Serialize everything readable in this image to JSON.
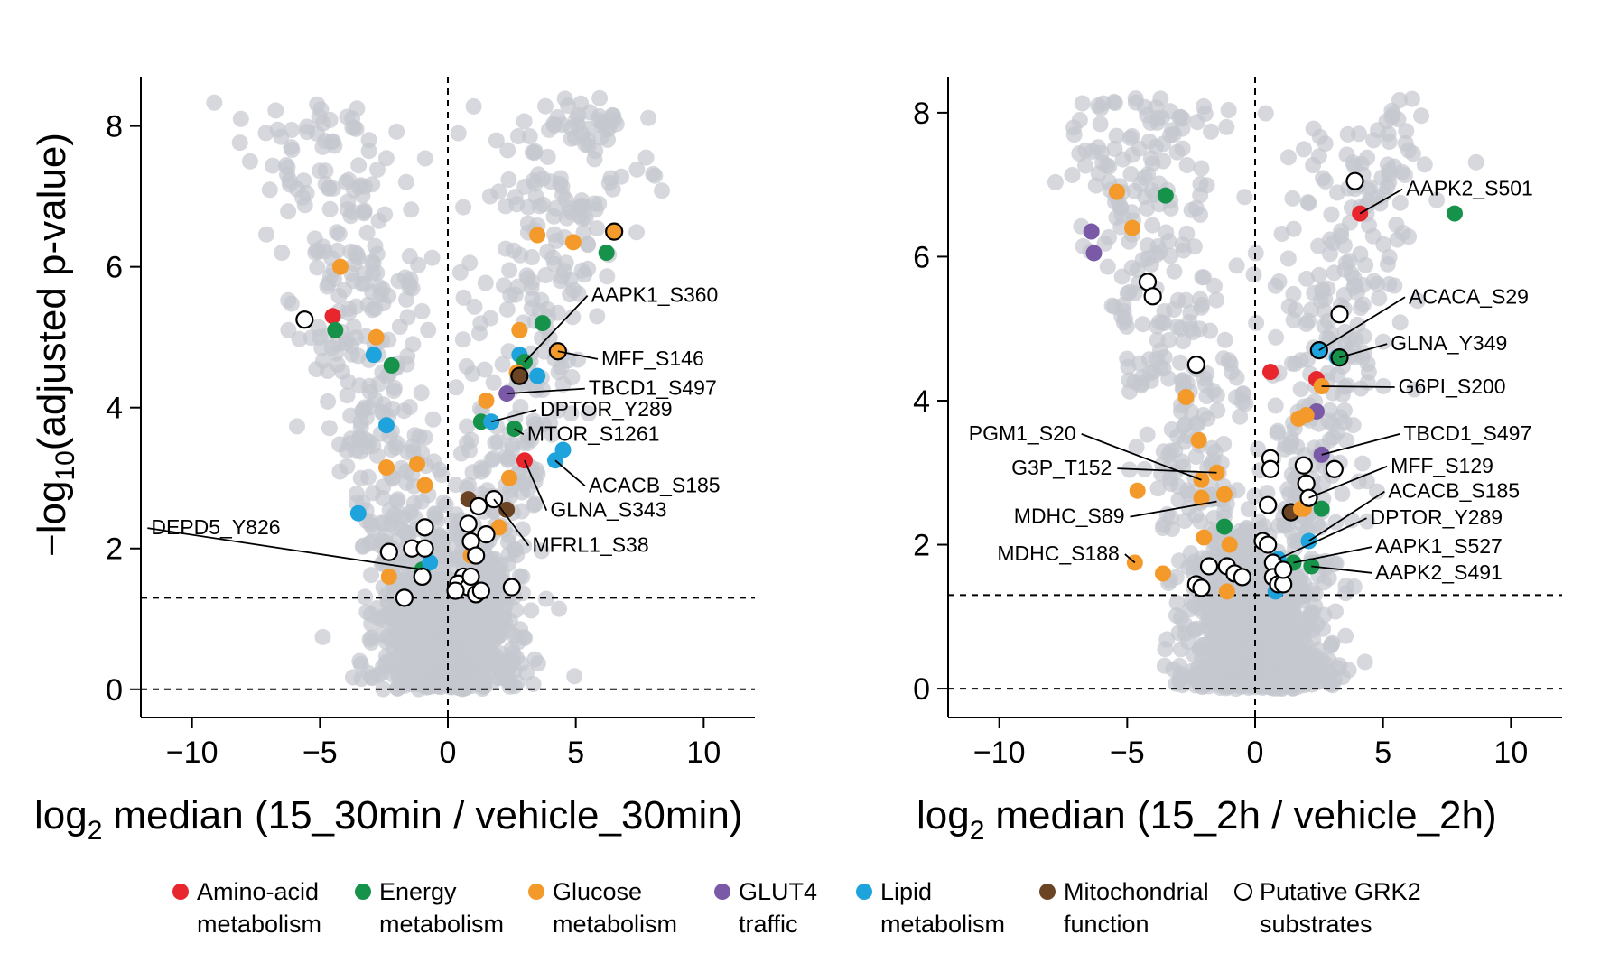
{
  "chart_data": [
    {
      "type": "scatter",
      "panel": "left",
      "xlabel": "log2 median (15_30min / vehicle_30min)",
      "xlabel_main": "median (15_30min / vehicle_30min)",
      "ylabel": "-log10(adjusted p-value)",
      "xlim": [
        -12,
        12
      ],
      "ylim": [
        -0.4,
        8.7
      ],
      "xticks": [
        -10,
        -5,
        0,
        5,
        10
      ],
      "xtick_labels": [
        "−10",
        "−5",
        "0",
        "5",
        "10"
      ],
      "yticks": [
        0,
        2,
        4,
        6,
        8
      ],
      "ytick_labels": [
        "0",
        "2",
        "4",
        "6",
        "8"
      ],
      "threshold_y": 1.3,
      "reference_y": 0,
      "reference_x": 0,
      "highlighted": [
        {
          "x": -4.5,
          "y": 5.3,
          "cat": "amino"
        },
        {
          "x": -4.4,
          "y": 5.1,
          "cat": "energy"
        },
        {
          "x": -4.2,
          "y": 6.0,
          "cat": "glucose"
        },
        {
          "x": -2.8,
          "y": 5.0,
          "cat": "glucose"
        },
        {
          "x": -2.9,
          "y": 4.75,
          "cat": "lipid"
        },
        {
          "x": -2.2,
          "y": 4.6,
          "cat": "energy"
        },
        {
          "x": -2.4,
          "y": 3.75,
          "cat": "lipid"
        },
        {
          "x": -2.4,
          "y": 3.15,
          "cat": "glucose"
        },
        {
          "x": -1.2,
          "y": 3.2,
          "cat": "glucose"
        },
        {
          "x": -0.9,
          "y": 2.9,
          "cat": "glucose"
        },
        {
          "x": -3.5,
          "y": 2.5,
          "cat": "lipid"
        },
        {
          "x": -2.3,
          "y": 1.6,
          "cat": "glucose"
        },
        {
          "x": -1.0,
          "y": 1.7,
          "cat": "energy"
        },
        {
          "x": -0.7,
          "y": 1.8,
          "cat": "lipid"
        },
        {
          "x": 3.5,
          "y": 6.45,
          "cat": "glucose"
        },
        {
          "x": 4.9,
          "y": 6.35,
          "cat": "glucose"
        },
        {
          "x": 6.2,
          "y": 6.2,
          "cat": "energy"
        },
        {
          "x": 2.8,
          "y": 5.1,
          "cat": "glucose"
        },
        {
          "x": 3.7,
          "y": 5.2,
          "cat": "energy"
        },
        {
          "x": 2.8,
          "y": 4.75,
          "cat": "lipid"
        },
        {
          "x": 3.0,
          "y": 4.65,
          "cat": "energy"
        },
        {
          "x": 2.7,
          "y": 4.5,
          "cat": "glucose"
        },
        {
          "x": 3.5,
          "y": 4.45,
          "cat": "lipid"
        },
        {
          "x": 1.5,
          "y": 4.1,
          "cat": "glucose"
        },
        {
          "x": 2.3,
          "y": 4.2,
          "cat": "glut4"
        },
        {
          "x": 1.3,
          "y": 3.8,
          "cat": "energy"
        },
        {
          "x": 1.7,
          "y": 3.8,
          "cat": "lipid"
        },
        {
          "x": 2.6,
          "y": 3.7,
          "cat": "energy"
        },
        {
          "x": 3.0,
          "y": 3.25,
          "cat": "amino"
        },
        {
          "x": 2.4,
          "y": 3.0,
          "cat": "glucose"
        },
        {
          "x": 4.2,
          "y": 3.25,
          "cat": "lipid"
        },
        {
          "x": 4.5,
          "y": 3.4,
          "cat": "lipid"
        },
        {
          "x": 0.8,
          "y": 2.7,
          "cat": "mito"
        },
        {
          "x": 2.3,
          "y": 2.55,
          "cat": "mito"
        },
        {
          "x": 6.5,
          "y": 6.5,
          "cat": "glucose",
          "ring": true
        },
        {
          "x": 4.3,
          "y": 4.8,
          "cat": "glucose",
          "ring": true
        },
        {
          "x": 2.8,
          "y": 4.45,
          "cat": "mito",
          "ring": true
        },
        {
          "x": 0.9,
          "y": 1.9,
          "cat": "glucose"
        },
        {
          "x": 2.0,
          "y": 2.3,
          "cat": "glucose"
        }
      ],
      "grk2": [
        {
          "x": -5.6,
          "y": 5.25
        },
        {
          "x": -0.9,
          "y": 2.3
        },
        {
          "x": -2.3,
          "y": 1.95
        },
        {
          "x": -1.4,
          "y": 2.0
        },
        {
          "x": -0.9,
          "y": 2.0
        },
        {
          "x": -1.0,
          "y": 1.6
        },
        {
          "x": -1.7,
          "y": 1.3
        },
        {
          "x": 0.8,
          "y": 2.35
        },
        {
          "x": 1.2,
          "y": 2.6
        },
        {
          "x": 1.8,
          "y": 2.7
        },
        {
          "x": 0.9,
          "y": 2.1
        },
        {
          "x": 1.5,
          "y": 2.2
        },
        {
          "x": 1.1,
          "y": 1.9
        },
        {
          "x": 0.6,
          "y": 1.6
        },
        {
          "x": 0.4,
          "y": 1.5
        },
        {
          "x": 0.8,
          "y": 1.45
        },
        {
          "x": 1.1,
          "y": 1.35
        },
        {
          "x": 1.3,
          "y": 1.4
        },
        {
          "x": 2.5,
          "y": 1.45
        },
        {
          "x": 0.3,
          "y": 1.4
        },
        {
          "x": 0.9,
          "y": 1.6
        }
      ],
      "labels": [
        {
          "text": "AAPK1_S360",
          "x": 5.6,
          "y": 5.5,
          "px": 3.0,
          "py": 4.65
        },
        {
          "text": "MFF_S146",
          "x": 6.0,
          "y": 4.6,
          "px": 4.3,
          "py": 4.8
        },
        {
          "text": "TBCD1_S497",
          "x": 5.5,
          "y": 4.18,
          "px": 2.3,
          "py": 4.2
        },
        {
          "text": "DPTOR_Y289",
          "x": 3.6,
          "y": 3.88,
          "px": 1.7,
          "py": 3.8
        },
        {
          "text": "MTOR_S1261",
          "x": 3.1,
          "y": 3.53,
          "px": 2.6,
          "py": 3.7
        },
        {
          "text": "ACACB_S185",
          "x": 5.5,
          "y": 2.8,
          "px": 4.2,
          "py": 3.25
        },
        {
          "text": "GLNA_S343",
          "x": 4.0,
          "y": 2.45,
          "px": 3.0,
          "py": 3.25
        },
        {
          "text": "MFRL1_S38",
          "x": 3.3,
          "y": 1.95,
          "px": 1.8,
          "py": 2.7
        },
        {
          "text": "DEPD5_Y826",
          "x": -11.6,
          "y": 2.2,
          "px": -1.0,
          "py": 1.7,
          "anchor": "start"
        }
      ]
    },
    {
      "type": "scatter",
      "panel": "right",
      "xlabel": "log2 median (15_2h / vehicle_2h)",
      "xlabel_main": "median (15_2h / vehicle_2h)",
      "ylabel": "",
      "xlim": [
        -12,
        12
      ],
      "ylim": [
        -0.4,
        8.5
      ],
      "xticks": [
        -10,
        -5,
        0,
        5,
        10
      ],
      "xtick_labels": [
        "−10",
        "−5",
        "0",
        "5",
        "10"
      ],
      "yticks": [
        0,
        2,
        4,
        6,
        8
      ],
      "ytick_labels": [
        "0",
        "2",
        "4",
        "6",
        "8"
      ],
      "threshold_y": 1.3,
      "reference_y": 0,
      "reference_x": 0,
      "highlighted": [
        {
          "x": -5.4,
          "y": 6.9,
          "cat": "glucose"
        },
        {
          "x": -3.5,
          "y": 6.85,
          "cat": "energy"
        },
        {
          "x": -4.8,
          "y": 6.4,
          "cat": "glucose"
        },
        {
          "x": -6.4,
          "y": 6.35,
          "cat": "glut4"
        },
        {
          "x": -6.3,
          "y": 6.05,
          "cat": "glut4"
        },
        {
          "x": -2.7,
          "y": 4.05,
          "cat": "glucose"
        },
        {
          "x": -2.2,
          "y": 3.45,
          "cat": "glucose"
        },
        {
          "x": -2.1,
          "y": 2.9,
          "cat": "glucose"
        },
        {
          "x": -1.5,
          "y": 3.0,
          "cat": "glucose"
        },
        {
          "x": -2.1,
          "y": 2.65,
          "cat": "glucose"
        },
        {
          "x": -1.2,
          "y": 2.7,
          "cat": "glucose"
        },
        {
          "x": -4.6,
          "y": 2.75,
          "cat": "glucose"
        },
        {
          "x": -2.0,
          "y": 2.1,
          "cat": "glucose"
        },
        {
          "x": -1.2,
          "y": 2.25,
          "cat": "energy"
        },
        {
          "x": -1.0,
          "y": 2.0,
          "cat": "glucose"
        },
        {
          "x": -4.7,
          "y": 1.75,
          "cat": "glucose"
        },
        {
          "x": -3.6,
          "y": 1.6,
          "cat": "glucose"
        },
        {
          "x": -1.1,
          "y": 1.35,
          "cat": "glucose"
        },
        {
          "x": 4.1,
          "y": 6.6,
          "cat": "amino"
        },
        {
          "x": 7.8,
          "y": 6.6,
          "cat": "energy"
        },
        {
          "x": 0.6,
          "y": 4.4,
          "cat": "amino"
        },
        {
          "x": 2.4,
          "y": 4.3,
          "cat": "amino"
        },
        {
          "x": 2.6,
          "y": 4.2,
          "cat": "glucose"
        },
        {
          "x": 1.7,
          "y": 3.75,
          "cat": "glucose"
        },
        {
          "x": 2.4,
          "y": 3.85,
          "cat": "glut4"
        },
        {
          "x": 2.6,
          "y": 3.25,
          "cat": "glut4"
        },
        {
          "x": 2.6,
          "y": 2.5,
          "cat": "energy"
        },
        {
          "x": 1.9,
          "y": 2.5,
          "cat": "glucose"
        },
        {
          "x": 2.1,
          "y": 2.05,
          "cat": "lipid"
        },
        {
          "x": 1.5,
          "y": 1.75,
          "cat": "energy"
        },
        {
          "x": 2.2,
          "y": 1.7,
          "cat": "energy"
        },
        {
          "x": 0.9,
          "y": 1.8,
          "cat": "lipid"
        },
        {
          "x": 3.2,
          "y": 4.6,
          "cat": "lipid"
        },
        {
          "x": 2.0,
          "y": 3.8,
          "cat": "glucose"
        },
        {
          "x": 2.5,
          "y": 4.7,
          "cat": "lipid",
          "ring": true
        },
        {
          "x": 3.3,
          "y": 4.6,
          "cat": "energy",
          "ring": true
        },
        {
          "x": 1.4,
          "y": 2.45,
          "cat": "mito",
          "ring": true
        },
        {
          "x": 1.8,
          "y": 2.5,
          "cat": "glucose"
        },
        {
          "x": 0.8,
          "y": 1.35,
          "cat": "lipid"
        }
      ],
      "grk2": [
        {
          "x": 3.9,
          "y": 7.05
        },
        {
          "x": 3.3,
          "y": 5.2
        },
        {
          "x": -4.2,
          "y": 5.65
        },
        {
          "x": -4.0,
          "y": 5.45
        },
        {
          "x": -2.3,
          "y": 4.5
        },
        {
          "x": 0.6,
          "y": 3.2
        },
        {
          "x": 0.6,
          "y": 3.05
        },
        {
          "x": 1.9,
          "y": 3.1
        },
        {
          "x": 3.1,
          "y": 3.05
        },
        {
          "x": 2.0,
          "y": 2.85
        },
        {
          "x": 2.1,
          "y": 2.65
        },
        {
          "x": 0.5,
          "y": 2.55
        },
        {
          "x": 0.3,
          "y": 2.05
        },
        {
          "x": 0.5,
          "y": 2.0
        },
        {
          "x": -1.8,
          "y": 1.7
        },
        {
          "x": -1.1,
          "y": 1.7
        },
        {
          "x": -0.8,
          "y": 1.6
        },
        {
          "x": -0.5,
          "y": 1.55
        },
        {
          "x": -2.3,
          "y": 1.45
        },
        {
          "x": -2.1,
          "y": 1.4
        },
        {
          "x": 0.7,
          "y": 1.75
        },
        {
          "x": 0.7,
          "y": 1.55
        },
        {
          "x": 0.9,
          "y": 1.45
        },
        {
          "x": 1.1,
          "y": 1.45
        },
        {
          "x": 1.1,
          "y": 1.65
        }
      ],
      "labels": [
        {
          "text": "AAPK2_S501",
          "x": 5.9,
          "y": 6.85,
          "px": 4.1,
          "py": 6.6
        },
        {
          "text": "ACACA_S29",
          "x": 6.0,
          "y": 5.35,
          "px": 2.5,
          "py": 4.7
        },
        {
          "text": "GLNA_Y349",
          "x": 5.3,
          "y": 4.7,
          "px": 3.3,
          "py": 4.6
        },
        {
          "text": "G6PI_S200",
          "x": 5.6,
          "y": 4.1,
          "px": 2.6,
          "py": 4.2
        },
        {
          "text": "TBCD1_S497",
          "x": 5.8,
          "y": 3.45,
          "px": 2.6,
          "py": 3.25
        },
        {
          "text": "MFF_S129",
          "x": 5.3,
          "y": 3.0,
          "px": 2.1,
          "py": 2.65
        },
        {
          "text": "ACACB_S185",
          "x": 5.2,
          "y": 2.65,
          "px": 2.1,
          "py": 2.05
        },
        {
          "text": "DPTOR_Y289",
          "x": 4.5,
          "y": 2.28,
          "px": 0.9,
          "py": 1.8
        },
        {
          "text": "AAPK1_S527",
          "x": 4.7,
          "y": 1.88,
          "px": 1.5,
          "py": 1.75
        },
        {
          "text": "AAPK2_S491",
          "x": 4.7,
          "y": 1.52,
          "px": 2.2,
          "py": 1.7
        },
        {
          "text": "PGM1_S20",
          "x": -7.0,
          "y": 3.45,
          "px": -2.1,
          "py": 2.9,
          "anchor": "end"
        },
        {
          "text": "G3P_T152",
          "x": -5.6,
          "y": 2.97,
          "px": -1.5,
          "py": 3.0,
          "anchor": "end"
        },
        {
          "text": "MDHC_S89",
          "x": -5.1,
          "y": 2.3,
          "px": -1.5,
          "py": 2.6,
          "anchor": "end"
        },
        {
          "text": "MDHC_S188",
          "x": -5.3,
          "y": 1.78,
          "px": -4.7,
          "py": 1.75,
          "anchor": "end"
        }
      ]
    }
  ],
  "legend": [
    {
      "key": "amino",
      "line1": "Amino-acid",
      "line2": "metabolism",
      "color": "#e8262d",
      "hollow": false
    },
    {
      "key": "energy",
      "line1": "Energy",
      "line2": "metabolism",
      "color": "#17924a",
      "hollow": false
    },
    {
      "key": "glucose",
      "line1": "Glucose",
      "line2": "metabolism",
      "color": "#f39a2b",
      "hollow": false
    },
    {
      "key": "glut4",
      "line1": "GLUT4",
      "line2": "traffic",
      "color": "#7a5aa6",
      "hollow": false
    },
    {
      "key": "lipid",
      "line1": "Lipid",
      "line2": "metabolism",
      "color": "#1ea3dc",
      "hollow": false
    },
    {
      "key": "mito",
      "line1": "Mitochondrial",
      "line2": "function",
      "color": "#6b4424",
      "hollow": false
    },
    {
      "key": "grk2",
      "line1": "Putative GRK2",
      "line2": "substrates",
      "color": "#ffffff",
      "hollow": true
    }
  ],
  "colors": {
    "background_points": "#c4c8ce",
    "amino": "#e8262d",
    "energy": "#17924a",
    "glucose": "#f39a2b",
    "glut4": "#7a5aa6",
    "lipid": "#1ea3dc",
    "mito": "#6b4424",
    "grk2": "#ffffff"
  }
}
